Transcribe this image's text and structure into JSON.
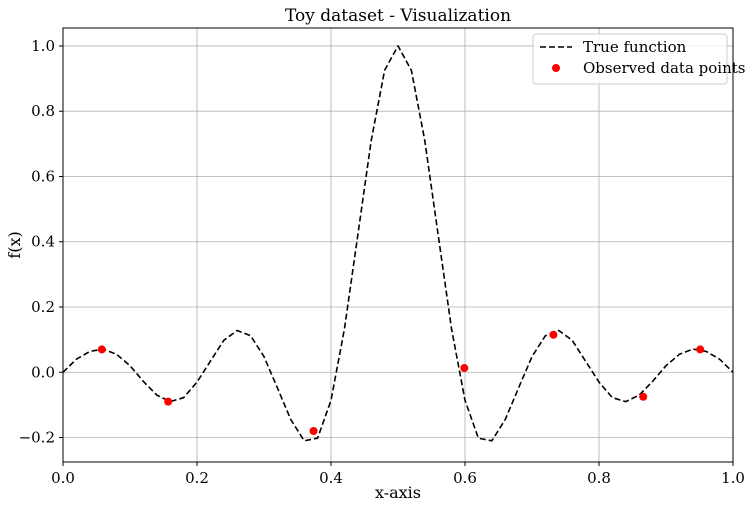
{
  "chart_data": {
    "type": "line",
    "title": "Toy dataset - Visualization",
    "xlabel": "x-axis",
    "ylabel": "f(x)",
    "xlim": [
      0.0,
      1.0
    ],
    "ylim": [
      -0.275,
      1.055
    ],
    "grid": true,
    "legend_position": "top-right",
    "x_ticks": [
      "0.0",
      "0.2",
      "0.4",
      "0.6",
      "0.8",
      "1.0"
    ],
    "y_ticks": [
      "−0.2",
      "0.0",
      "0.2",
      "0.4",
      "0.6",
      "0.8",
      "1.0"
    ],
    "series": [
      {
        "name": "True function",
        "style": "dashed-line",
        "color": "#000000",
        "x": [
          0.0,
          0.02,
          0.04,
          0.06,
          0.08,
          0.1,
          0.12,
          0.14,
          0.16,
          0.18,
          0.2,
          0.22,
          0.24,
          0.26,
          0.28,
          0.3,
          0.32,
          0.34,
          0.36,
          0.38,
          0.4,
          0.42,
          0.44,
          0.46,
          0.48,
          0.5,
          0.52,
          0.54,
          0.56,
          0.58,
          0.6,
          0.62,
          0.64,
          0.66,
          0.68,
          0.7,
          0.72,
          0.74,
          0.76,
          0.78,
          0.8,
          0.82,
          0.84,
          0.86,
          0.88,
          0.9,
          0.92,
          0.94,
          0.96,
          0.98,
          1.0
        ],
        "y": [
          0.0,
          0.04,
          0.064,
          0.071,
          0.055,
          0.02,
          -0.028,
          -0.07,
          -0.09,
          -0.078,
          -0.03,
          0.034,
          0.098,
          0.128,
          0.112,
          0.048,
          -0.048,
          -0.145,
          -0.21,
          -0.202,
          -0.086,
          0.132,
          0.42,
          0.71,
          0.925,
          1.0,
          0.925,
          0.71,
          0.42,
          0.132,
          -0.086,
          -0.202,
          -0.21,
          -0.145,
          -0.048,
          0.048,
          0.112,
          0.128,
          0.098,
          0.034,
          -0.03,
          -0.078,
          -0.09,
          -0.07,
          -0.028,
          0.02,
          0.055,
          0.071,
          0.064,
          0.04,
          0.0
        ]
      },
      {
        "name": "Observed data points",
        "style": "scatter",
        "color": "#ff0000",
        "x": [
          0.058,
          0.157,
          0.374,
          0.599,
          0.732,
          0.866,
          0.951
        ],
        "y": [
          0.07,
          -0.09,
          -0.18,
          0.013,
          0.115,
          -0.075,
          0.07
        ]
      }
    ]
  }
}
